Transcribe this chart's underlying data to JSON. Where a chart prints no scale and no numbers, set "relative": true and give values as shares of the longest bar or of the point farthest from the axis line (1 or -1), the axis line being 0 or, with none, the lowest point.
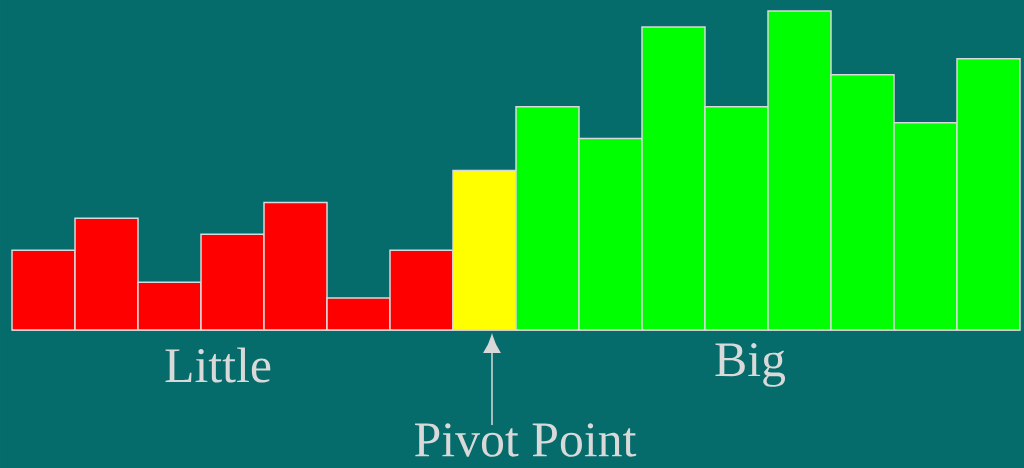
{
  "chart_data": {
    "type": "bar",
    "relative": true,
    "categories": [
      null,
      null,
      null,
      null,
      null,
      null,
      null,
      null,
      null,
      null,
      null,
      null,
      null,
      null,
      null,
      null
    ],
    "values": [
      0.25,
      0.35,
      0.15,
      0.3,
      0.4,
      0.1,
      0.25,
      0.5,
      0.7,
      0.6,
      0.95,
      0.7,
      1,
      0.8,
      0.65,
      0.85
    ],
    "colors": [
      "#ff0000",
      "#ff0000",
      "#ff0000",
      "#ff0000",
      "#ff0000",
      "#ff0000",
      "#ff0000",
      "#ffff00",
      "#00ff00",
      "#00ff00",
      "#00ff00",
      "#00ff00",
      "#00ff00",
      "#00ff00",
      "#00ff00",
      "#00ff00"
    ],
    "annotations": [
      "Little",
      "Big",
      "Pivot Point"
    ]
  }
}
